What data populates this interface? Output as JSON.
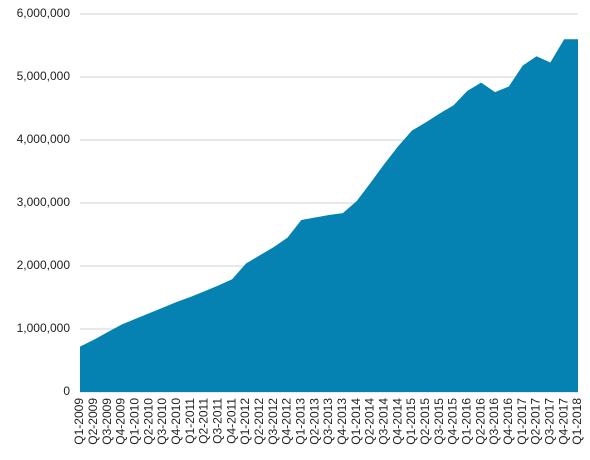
{
  "chart_data": {
    "type": "area",
    "categories": [
      "Q1-2009",
      "Q2-2009",
      "Q3-2009",
      "Q4-2009",
      "Q1-2010",
      "Q2-2010",
      "Q3-2010",
      "Q4-2010",
      "Q1-2011",
      "Q2-2011",
      "Q3-2011",
      "Q4-2011",
      "Q1-2012",
      "Q2-2012",
      "Q3-2012",
      "Q4-2012",
      "Q1-2013",
      "Q2-2013",
      "Q3-2013",
      "Q4-2013",
      "Q1-2014",
      "Q2-2014",
      "Q3-2014",
      "Q4-2014",
      "Q1-2015",
      "Q2-2015",
      "Q3-2015",
      "Q4-2015",
      "Q1-2016",
      "Q2-2016",
      "Q3-2016",
      "Q4-2016",
      "Q1-2017",
      "Q2-2017",
      "Q3-2017",
      "Q4-2017",
      "Q1-2018"
    ],
    "values": [
      720000,
      830000,
      950000,
      1070000,
      1160000,
      1250000,
      1340000,
      1430000,
      1510000,
      1600000,
      1690000,
      1790000,
      2040000,
      2170000,
      2300000,
      2450000,
      2730000,
      2770000,
      2810000,
      2840000,
      3030000,
      3320000,
      3620000,
      3900000,
      4150000,
      4280000,
      4420000,
      4550000,
      4780000,
      4910000,
      4760000,
      4850000,
      5180000,
      5330000,
      5230000,
      5600000,
      5600000
    ],
    "color": "#0582b2",
    "ylim": [
      0,
      6000000
    ],
    "yticks": [
      0,
      {
        "value": 1000000,
        "label": "1,000,000"
      },
      {
        "value": 2000000,
        "label": "2,000,000"
      },
      {
        "value": 3000000,
        "label": "3,000,000"
      },
      {
        "value": 4000000,
        "label": "4,000,000"
      },
      {
        "value": 5000000,
        "label": "5,000,000"
      },
      {
        "value": 6000000,
        "label": "6,000,000"
      }
    ],
    "grid": true
  }
}
